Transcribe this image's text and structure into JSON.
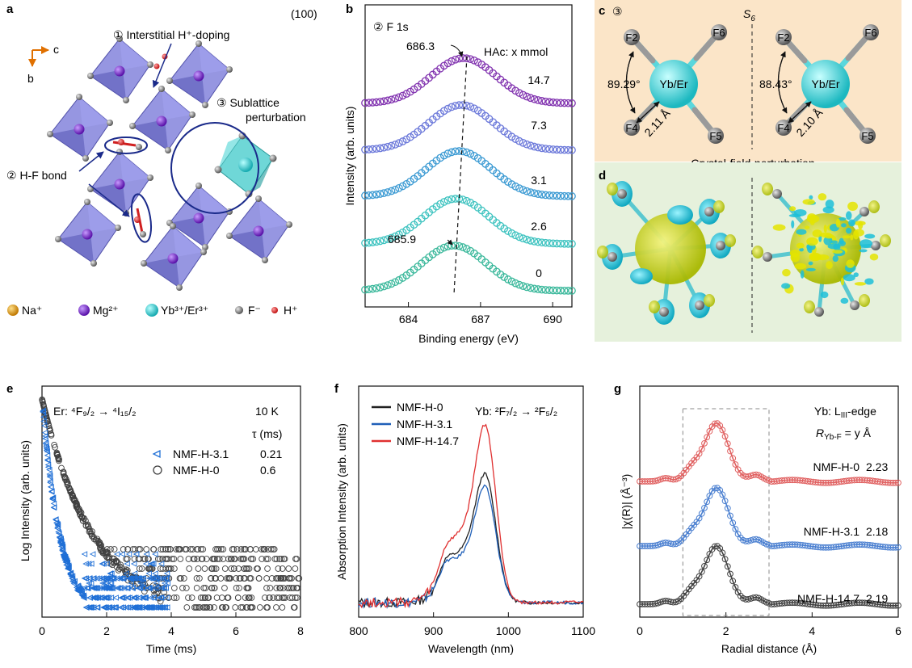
{
  "panels": {
    "a": "a",
    "b": "b",
    "c": "c",
    "d": "d",
    "e": "e",
    "f": "f",
    "g": "g"
  },
  "panel_a": {
    "face": "(100)",
    "axis_c": "c",
    "axis_b": "b",
    "label1": "① Interstitial H⁺-doping",
    "label2": "② H-F bond",
    "label3a": "③  Sublattice",
    "label3b": "perturbation",
    "legend": [
      {
        "label": "Na⁺",
        "color": "#f0a818"
      },
      {
        "label": "Mg²⁺",
        "color": "#7a1fd6"
      },
      {
        "label": "Yb³⁺/Er³⁺",
        "color": "#38dcdc"
      },
      {
        "label": "F⁻",
        "color": "#909090"
      },
      {
        "label": "H⁺",
        "color": "#e02020"
      }
    ]
  },
  "panel_c": {
    "num": "③",
    "symmetry": "S",
    "symmetry_sub": "6",
    "center": "Yb/Er",
    "f2": "F2",
    "f4": "F4",
    "f5": "F5",
    "f6": "F6",
    "angle_left": "89.29°",
    "bond_left": "2.11 Å",
    "angle_right": "88.43°",
    "bond_right": "2.10 Å",
    "caption": "Crystal-field-perturbation",
    "colors": {
      "bg": "#fbe5c8",
      "ion": "#3ad4d4",
      "bond": "#5ad7dc"
    }
  },
  "panel_d": {
    "colors": {
      "bg": "#e6f1dc",
      "iso_yellow": "#e6e600",
      "iso_cyan": "#20c8d8"
    }
  },
  "chart_data": [
    {
      "panel": "b",
      "type": "scatter",
      "title": "② F 1s",
      "xlabel": "Binding energy (eV)",
      "ylabel": "Intensity (arb. units)",
      "xlim": [
        682.2,
        690.8
      ],
      "x_ticks": [
        "684",
        "687",
        "690"
      ],
      "legend_title": "HAc: x mmol",
      "peak_labels": [
        "686.3",
        "685.9"
      ],
      "series": [
        {
          "name": "0",
          "peak": 685.9,
          "color": "#3ab89b"
        },
        {
          "name": "2.6",
          "peak": 686.0,
          "color": "#3ec3c0"
        },
        {
          "name": "3.1",
          "peak": 686.1,
          "color": "#3b9ad3"
        },
        {
          "name": "7.3",
          "peak": 686.2,
          "color": "#6c79da"
        },
        {
          "name": "14.7",
          "peak": 686.3,
          "color": "#8234b0"
        }
      ]
    },
    {
      "panel": "e",
      "type": "scatter",
      "title": "Er: ⁴F₉/₂ → ⁴I₁₅/₂",
      "temperature": "10 K",
      "tau_header": "τ (ms)",
      "xlabel": "Time (ms)",
      "ylabel": "Log Intensity (arb. units)",
      "xlim": [
        0,
        8
      ],
      "x_ticks": [
        "0",
        "2",
        "4",
        "6",
        "8"
      ],
      "series": [
        {
          "name": "NMF-H-3.1",
          "tau_ms": "0.21",
          "color": "#1f6fd6"
        },
        {
          "name": "NMF-H-0",
          "tau_ms": "0.6",
          "color": "#404040"
        }
      ]
    },
    {
      "panel": "f",
      "type": "line",
      "title": "Yb: ²F₇/₂ → ²F₅/₂",
      "xlabel": "Wavelength (nm)",
      "ylabel": "Absorption Intensity (arb. units)",
      "xlim": [
        800,
        1100
      ],
      "x_ticks": [
        "800",
        "900",
        "1000",
        "1100"
      ],
      "peak_nm": 970,
      "series": [
        {
          "name": "NMF-H-0",
          "color": "#222222"
        },
        {
          "name": "NMF-H-3.1",
          "color": "#1f5fb8"
        },
        {
          "name": "NMF-H-14.7",
          "color": "#e03030"
        }
      ]
    },
    {
      "panel": "g",
      "type": "scatter",
      "title": "Yb: L₃-edge",
      "title_main": "Yb: L",
      "title_sub": "III",
      "title_end": "-edge",
      "r_label": "R",
      "r_sub": "Yb-F",
      "r_end": " = y Å",
      "xlabel": "Radial distance (Å)",
      "ylabel": "|χ(R)| (Å⁻³)",
      "xlim": [
        0,
        6
      ],
      "x_ticks": [
        "0",
        "2",
        "4",
        "6"
      ],
      "window": [
        1,
        3
      ],
      "series": [
        {
          "name": "NMF-H-0",
          "value": "2.23",
          "color": "#e06060"
        },
        {
          "name": "NMF-H-3.1",
          "value": "2.18",
          "color": "#4a7fd0"
        },
        {
          "name": "NMF-H-14.7",
          "value": "2.19",
          "color": "#404040"
        }
      ]
    }
  ]
}
